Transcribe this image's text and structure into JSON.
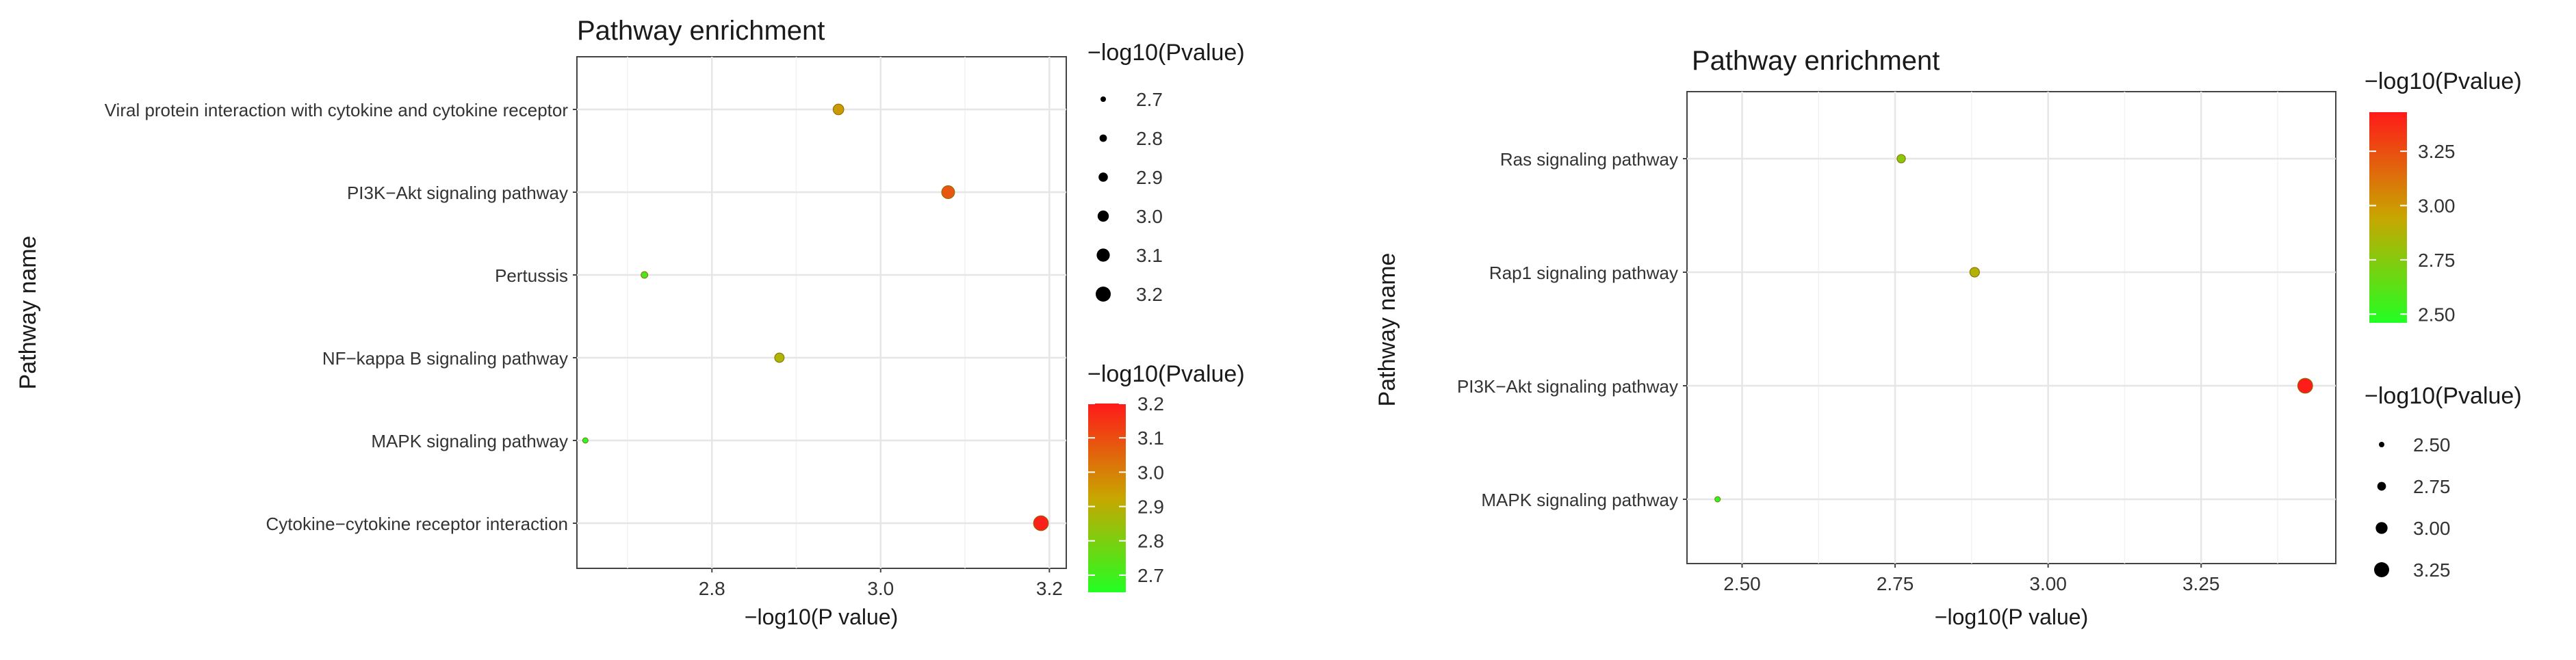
{
  "colors": {
    "low": "#22ff22",
    "mid": "#c8a600",
    "high": "#ff1a1a",
    "panel_border": "#444444",
    "grid": "#e6e6e6",
    "text": "#333333",
    "title": "#1a1a1a"
  },
  "chart_data": [
    {
      "type": "scatter",
      "title": "Pathway enrichment",
      "xlabel": "−log10(P value)",
      "ylabel": "Pathway name",
      "xlim": [
        2.64,
        3.22
      ],
      "xticks": [
        2.8,
        3.0,
        3.2
      ],
      "xtick_labels": [
        "2.8",
        "3.0",
        "3.2"
      ],
      "categories": [
        "Viral protein interaction with cytokine and cytokine receptor",
        "PI3K−Akt signaling pathway",
        "Pertussis",
        "NF−kappa B signaling pathway",
        "MAPK signaling pathway",
        "Cytokine−cytokine receptor interaction"
      ],
      "x": [
        2.95,
        3.08,
        2.72,
        2.88,
        2.65,
        3.19
      ],
      "color_range": [
        2.65,
        3.2
      ],
      "size_range": [
        2.65,
        3.2
      ],
      "color_legend": {
        "title": "−log10(Pvalue)",
        "ticks": [
          2.7,
          2.8,
          2.9,
          3.0,
          3.1,
          3.2
        ],
        "tick_labels": [
          "2.7",
          "2.8",
          "2.9",
          "3.0",
          "3.1",
          "3.2"
        ]
      },
      "size_legend": {
        "title": "−log10(Pvalue)",
        "values": [
          2.7,
          2.8,
          2.9,
          3.0,
          3.1,
          3.2
        ],
        "labels": [
          "2.7",
          "2.8",
          "2.9",
          "3.0",
          "3.1",
          "3.2"
        ]
      },
      "legend_position": "right",
      "grid": true
    },
    {
      "type": "scatter",
      "title": "Pathway enrichment",
      "xlabel": "−log10(P value)",
      "ylabel": "Pathway name",
      "xlim": [
        2.41,
        3.47
      ],
      "xticks": [
        2.5,
        2.75,
        3.0,
        3.25
      ],
      "xtick_labels": [
        "2.50",
        "2.75",
        "3.00",
        "3.25"
      ],
      "categories": [
        "Ras signaling pathway",
        "Rap1 signaling pathway",
        "PI3K−Akt signaling pathway",
        "MAPK signaling pathway"
      ],
      "x": [
        2.76,
        2.88,
        3.42,
        2.46
      ],
      "color_range": [
        2.46,
        3.43
      ],
      "size_range": [
        2.46,
        3.43
      ],
      "color_legend": {
        "title": "−log10(Pvalue)",
        "ticks": [
          2.5,
          2.75,
          3.0,
          3.25
        ],
        "tick_labels": [
          "2.50",
          "2.75",
          "3.00",
          "3.25"
        ]
      },
      "size_legend": {
        "title": "−log10(Pvalue)",
        "values": [
          2.5,
          2.75,
          3.0,
          3.25
        ],
        "labels": [
          "2.50",
          "2.75",
          "3.00",
          "3.25"
        ]
      },
      "legend_position": "right",
      "grid": true
    }
  ]
}
